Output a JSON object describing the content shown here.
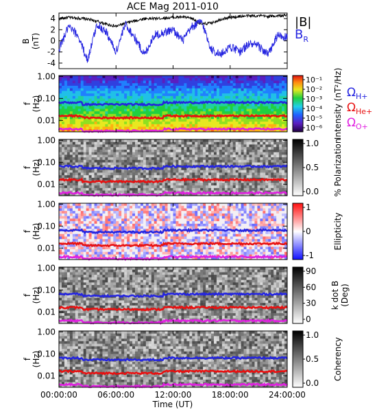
{
  "figure": {
    "title": "ACE Mag 2011-010",
    "xlabel": "Time (UT)",
    "xticks": [
      "00:00:00",
      "06:00:00",
      "12:00:00",
      "18:00:00",
      "24:00:00"
    ],
    "xlim_hours": [
      0,
      24
    ]
  },
  "chart_data": [
    {
      "type": "line",
      "panel": "magnetic-field",
      "ylabel_top": "B",
      "ylabel_bottom": "(nT)",
      "ylim": [
        -5,
        5
      ],
      "yticks": [
        "4",
        "2",
        "0",
        "-2",
        "-4"
      ],
      "series": [
        {
          "name": "|B|",
          "color": "#000000",
          "x_hours": [
            0,
            1,
            2,
            3,
            4,
            5,
            6,
            7,
            8,
            9,
            10,
            11,
            12,
            13,
            14,
            15,
            16,
            17,
            18,
            19,
            20,
            21,
            22,
            23,
            24
          ],
          "values": [
            4.0,
            4.2,
            4.1,
            3.9,
            3.5,
            3.0,
            2.6,
            3.2,
            3.6,
            4.0,
            4.0,
            4.1,
            4.2,
            4.3,
            4.0,
            3.0,
            3.2,
            3.9,
            4.2,
            4.4,
            4.5,
            4.5,
            4.4,
            4.5,
            4.6
          ]
        },
        {
          "name": "B",
          "sub": "R",
          "color": "#2424e0",
          "x_hours": [
            0,
            1,
            2,
            3,
            4,
            5,
            6,
            7,
            8,
            9,
            10,
            11,
            12,
            13,
            14,
            15,
            16,
            17,
            18,
            19,
            20,
            21,
            22,
            23,
            24
          ],
          "values": [
            -1.5,
            2.5,
            1.0,
            -3.5,
            3.0,
            1.5,
            -2.0,
            3.0,
            0.5,
            -2.5,
            1.0,
            1.5,
            2.0,
            0.0,
            2.5,
            3.5,
            -1.5,
            -2.5,
            -1.0,
            -2.0,
            -0.5,
            -1.0,
            -2.5,
            1.0,
            0.5
          ]
        }
      ]
    },
    {
      "type": "heatmap",
      "panel": "intensity",
      "ylabel_top": "f",
      "ylabel_bottom": "(Hz)",
      "yticks": [
        "1.00",
        "0.10",
        "0.01"
      ],
      "scale": "rainbow",
      "colorbar_label": "Intensity (nT²/Hz)",
      "colorbar_ticks": [
        "10⁻¹",
        "10⁻²",
        "10⁻³",
        "10⁻⁴",
        "10⁻⁵",
        "10⁻⁶"
      ]
    },
    {
      "type": "heatmap",
      "panel": "polarization",
      "ylabel_top": "f",
      "ylabel_bottom": "(Hz)",
      "yticks": [
        "1.00",
        "0.10",
        "0.01"
      ],
      "scale": "gray",
      "colorbar_label": "% Polarization",
      "colorbar_ticks": [
        "1.0",
        "0.5",
        "0.0"
      ]
    },
    {
      "type": "heatmap",
      "panel": "ellipticity",
      "ylabel_top": "f",
      "ylabel_bottom": "(Hz)",
      "yticks": [
        "1.00",
        "0.10",
        "0.01"
      ],
      "scale": "bwr",
      "colorbar_label": "Ellipticity",
      "colorbar_ticks": [
        "1",
        "0",
        "-1"
      ]
    },
    {
      "type": "heatmap",
      "panel": "k-dot-b",
      "ylabel_top": "f",
      "ylabel_bottom": "(Hz)",
      "yticks": [
        "1.00",
        "0.10",
        "0.01"
      ],
      "scale": "gray",
      "colorbar_label": "k dot B",
      "colorbar_label2": "(Deg)",
      "colorbar_ticks": [
        "90",
        "60",
        "30",
        "0"
      ]
    },
    {
      "type": "heatmap",
      "panel": "coherency",
      "ylabel_top": "f",
      "ylabel_bottom": "(Hz)",
      "yticks": [
        "1.00",
        "0.10",
        "0.01"
      ],
      "scale": "gray",
      "colorbar_label": "Coherency",
      "colorbar_ticks": [
        "1.0",
        "0.5",
        "0.0"
      ]
    }
  ],
  "gyrofrequencies": [
    {
      "label": "Ω",
      "sub": "H+",
      "color": "#2424e0",
      "freq_hz": 0.065
    },
    {
      "label": "Ω",
      "sub": "He+",
      "color": "#e81010",
      "freq_hz": 0.016
    },
    {
      "label": "Ω",
      "sub": "O+",
      "color": "#e020e0",
      "freq_hz": 0.004
    }
  ]
}
